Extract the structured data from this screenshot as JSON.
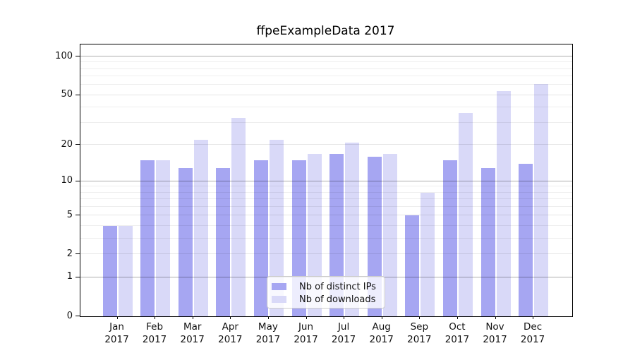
{
  "chart_data": {
    "type": "bar",
    "title": "ffpeExampleData 2017",
    "categories": [
      "Jan",
      "Feb",
      "Mar",
      "Apr",
      "May",
      "Jun",
      "Jul",
      "Aug",
      "Sep",
      "Oct",
      "Nov",
      "Dec"
    ],
    "category_year": "2017",
    "series": [
      {
        "name": "Nb of distinct IPs",
        "slug": "distinct-ips",
        "color": "#a6a6f2",
        "values": [
          4,
          15,
          13,
          13,
          15,
          15,
          17,
          16,
          5,
          15,
          13,
          14
        ]
      },
      {
        "name": "Nb of downloads",
        "slug": "downloads",
        "color": "#d9d9f8",
        "values": [
          4,
          15,
          22,
          33,
          22,
          17,
          21,
          17,
          8,
          36,
          54,
          61
        ]
      }
    ],
    "xlabel": "",
    "ylabel": "",
    "yscale": "log1p",
    "ylim": [
      0,
      124
    ],
    "ytick_labels": [
      0,
      1,
      2,
      5,
      10,
      20,
      50,
      100
    ],
    "grid": {
      "minor_values": [
        3,
        4,
        6,
        7,
        8,
        9,
        30,
        40,
        60,
        70,
        80,
        90
      ],
      "major_light_values": [
        2,
        5,
        20,
        50
      ],
      "major_dark_values": [
        1,
        10,
        100
      ]
    },
    "legend_position": "bottom-center"
  }
}
